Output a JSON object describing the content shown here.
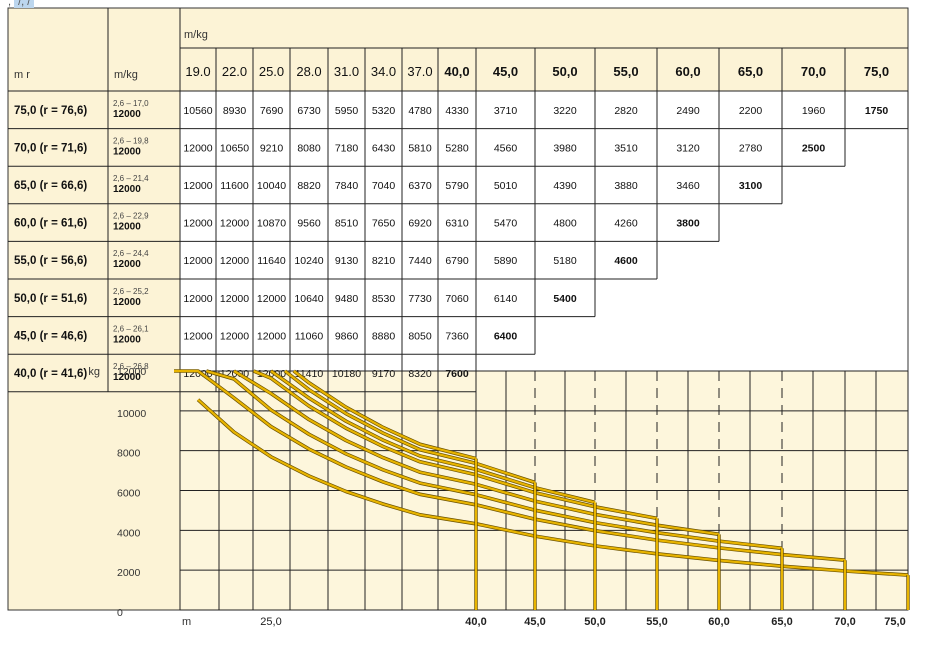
{
  "caption": {
    "prefix": ", ",
    "highlight": "/, /"
  },
  "header": {
    "top_unit": "m/kg",
    "col1": "m    r",
    "col2": "m/kg"
  },
  "columns": [
    "19.0",
    "22.0",
    "25.0",
    "28.0",
    "31.0",
    "34.0",
    "37.0",
    "40,0",
    "45,0",
    "50,0",
    "55,0",
    "60,0",
    "65,0",
    "70,0",
    "75,0"
  ],
  "rows": [
    {
      "label": "75,0 (r = 76,6)",
      "range": "2,6 – 17,0",
      "max": "12000",
      "values": [
        "10560",
        "8930",
        "7690",
        "6730",
        "5950",
        "5320",
        "4780",
        "4330",
        "3710",
        "3220",
        "2820",
        "2490",
        "2200",
        "1960",
        "1750"
      ]
    },
    {
      "label": "70,0 (r = 71,6)",
      "range": "2,6 – 19,8",
      "max": "12000",
      "values": [
        "12000",
        "10650",
        "9210",
        "8080",
        "7180",
        "6430",
        "5810",
        "5280",
        "4560",
        "3980",
        "3510",
        "3120",
        "2780",
        "2500"
      ]
    },
    {
      "label": "65,0 (r = 66,6)",
      "range": "2,6 – 21,4",
      "max": "12000",
      "values": [
        "12000",
        "11600",
        "10040",
        "8820",
        "7840",
        "7040",
        "6370",
        "5790",
        "5010",
        "4390",
        "3880",
        "3460",
        "3100"
      ]
    },
    {
      "label": "60,0 (r = 61,6)",
      "range": "2,6 – 22,9",
      "max": "12000",
      "values": [
        "12000",
        "12000",
        "10870",
        "9560",
        "8510",
        "7650",
        "6920",
        "6310",
        "5470",
        "4800",
        "4260",
        "3800"
      ]
    },
    {
      "label": "55,0 (r = 56,6)",
      "range": "2,6 – 24,4",
      "max": "12000",
      "values": [
        "12000",
        "12000",
        "11640",
        "10240",
        "9130",
        "8210",
        "7440",
        "6790",
        "5890",
        "5180",
        "4600"
      ]
    },
    {
      "label": "50,0 (r = 51,6)",
      "range": "2,6 – 25,2",
      "max": "12000",
      "values": [
        "12000",
        "12000",
        "12000",
        "10640",
        "9480",
        "8530",
        "7730",
        "7060",
        "6140",
        "5400"
      ]
    },
    {
      "label": "45,0 (r = 46,6)",
      "range": "2,6 – 26,1",
      "max": "12000",
      "values": [
        "12000",
        "12000",
        "12000",
        "11060",
        "9860",
        "8880",
        "8050",
        "7360",
        "6400"
      ]
    },
    {
      "label": "40,0 (r = 41,6)",
      "range": "2,6 – 26,8",
      "max": "12000",
      "values": [
        "12000",
        "12000",
        "12000",
        "11410",
        "10180",
        "9170",
        "8320",
        "7600"
      ]
    }
  ],
  "chart_data": {
    "type": "line",
    "title": "",
    "ylabel": "kg",
    "xlabel": "m",
    "y_ticks": [
      "12000",
      "10000",
      "8000",
      "6000",
      "4000",
      "2000",
      "0"
    ],
    "x_tick_labels": [
      "25,0",
      "40,0",
      "45,0",
      "50,0",
      "55,0",
      "60,0",
      "65,0",
      "70,0",
      "75,0"
    ],
    "ylim": [
      0,
      12000
    ],
    "series": [
      {
        "name": "75,0",
        "end": 75,
        "x": [
          19,
          22,
          25,
          28,
          31,
          34,
          37,
          40,
          45,
          50,
          55,
          60,
          65,
          70,
          75
        ],
        "values": [
          10560,
          8930,
          7690,
          6730,
          5950,
          5320,
          4780,
          4330,
          3710,
          3220,
          2820,
          2490,
          2200,
          1960,
          1750
        ]
      },
      {
        "name": "70,0",
        "end": 70,
        "x": [
          17,
          19,
          22,
          25,
          28,
          31,
          34,
          37,
          40,
          45,
          50,
          55,
          60,
          65,
          70
        ],
        "values": [
          12000,
          12000,
          10650,
          9210,
          8080,
          7180,
          6430,
          5810,
          5280,
          4560,
          3980,
          3510,
          3120,
          2780,
          2500
        ]
      },
      {
        "name": "65,0",
        "end": 65,
        "x": [
          19.7,
          22,
          25,
          28,
          31,
          34,
          37,
          40,
          45,
          50,
          55,
          60,
          65
        ],
        "values": [
          12000,
          11600,
          10040,
          8820,
          7840,
          7040,
          6370,
          5790,
          5010,
          4390,
          3880,
          3460,
          3100
        ]
      },
      {
        "name": "60,0",
        "end": 60,
        "x": [
          22,
          25,
          28,
          31,
          34,
          37,
          40,
          45,
          50,
          55,
          60
        ],
        "values": [
          12000,
          10870,
          9560,
          8510,
          7650,
          6920,
          6310,
          5470,
          4800,
          4260,
          3800
        ]
      },
      {
        "name": "55,0",
        "end": 55,
        "x": [
          23.6,
          25,
          28,
          31,
          34,
          37,
          40,
          45,
          50,
          55
        ],
        "values": [
          12000,
          11640,
          10240,
          9130,
          8210,
          7440,
          6790,
          5890,
          5180,
          4600
        ]
      },
      {
        "name": "50,0",
        "end": 50,
        "x": [
          25,
          28,
          31,
          34,
          37,
          40,
          45,
          50
        ],
        "values": [
          12000,
          10640,
          9480,
          8530,
          7730,
          7060,
          6140,
          5400
        ]
      },
      {
        "name": "45,0",
        "end": 45,
        "x": [
          26.1,
          28,
          31,
          34,
          37,
          40,
          45
        ],
        "values": [
          12000,
          11060,
          9860,
          8880,
          8050,
          7360,
          6400
        ]
      },
      {
        "name": "40,0",
        "end": 40,
        "x": [
          26.8,
          28,
          31,
          34,
          37,
          40
        ],
        "values": [
          12000,
          11410,
          10180,
          9170,
          8320,
          7600
        ]
      }
    ],
    "colors": {
      "curve": "#e8b400",
      "curve_dark": "#6b5200",
      "cell_fill": "#fcf3d6",
      "chart_fill": "#fdf6dc",
      "grid": "#222222"
    }
  }
}
